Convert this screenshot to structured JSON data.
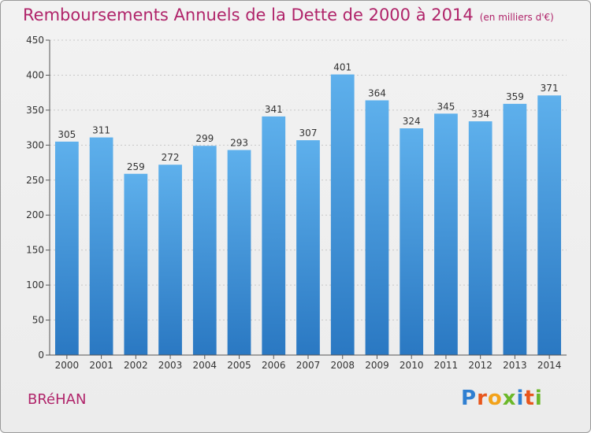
{
  "header": {
    "title": "Remboursements Annuels de la Dette de 2000 à 2014",
    "unit": "(en milliers d'€)"
  },
  "footer": {
    "town": "BRéHAN",
    "logo": "Proxiti"
  },
  "colors": {
    "title": "#b0246a",
    "bar_top": "#5eb0ec",
    "bar_bottom": "#2a78c2",
    "grid": "#c8c8c8"
  },
  "chart_data": {
    "type": "bar",
    "title": "Remboursements Annuels de la Dette de 2000 à 2014",
    "xlabel": "",
    "ylabel": "",
    "ylim": [
      0,
      450
    ],
    "yticks": [
      0,
      50,
      100,
      150,
      200,
      250,
      300,
      350,
      400,
      450
    ],
    "grid": true,
    "categories": [
      "2000",
      "2001",
      "2002",
      "2003",
      "2004",
      "2005",
      "2006",
      "2007",
      "2008",
      "2009",
      "2010",
      "2011",
      "2012",
      "2013",
      "2014"
    ],
    "values": [
      305,
      311,
      259,
      272,
      299,
      293,
      341,
      307,
      401,
      364,
      324,
      345,
      334,
      359,
      371
    ]
  }
}
